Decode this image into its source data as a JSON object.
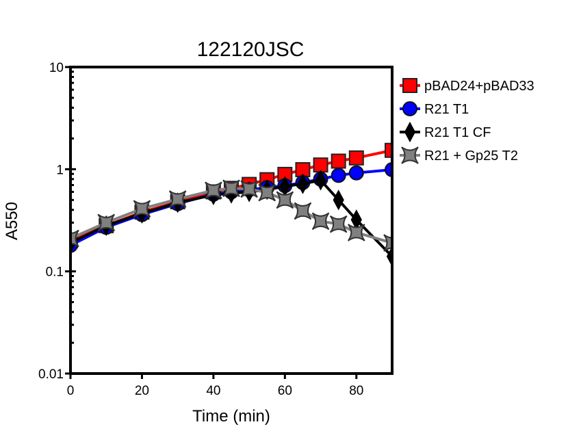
{
  "chart_data": {
    "type": "line",
    "title": "122120JSC",
    "xlabel": "Time (min)",
    "ylabel": "A550",
    "xlim": [
      0,
      90
    ],
    "ylim": [
      0.01,
      10
    ],
    "yscale": "log",
    "grid": false,
    "legend_position": "right",
    "x_ticks": [
      0,
      20,
      40,
      60,
      80
    ],
    "x_tick_labels": [
      "0",
      "20",
      "40",
      "60",
      "80"
    ],
    "y_ticks": [
      0.01,
      0.1,
      1,
      10
    ],
    "y_tick_labels": [
      "0.01",
      "0.1",
      "1",
      "10"
    ],
    "series": [
      {
        "name": "pBAD24+pBAD33",
        "color": "#ff0000",
        "marker": "square",
        "x": [
          0,
          10,
          20,
          30,
          40,
          45,
          50,
          55,
          60,
          65,
          70,
          75,
          80,
          90
        ],
        "y": [
          0.2,
          0.28,
          0.38,
          0.48,
          0.6,
          0.65,
          0.71,
          0.79,
          0.89,
          0.99,
          1.1,
          1.2,
          1.29,
          1.53
        ]
      },
      {
        "name": "R21 T1",
        "color": "#0000ff",
        "marker": "circle",
        "x": [
          0,
          10,
          20,
          30,
          40,
          45,
          50,
          55,
          60,
          65,
          70,
          75,
          80,
          90
        ],
        "y": [
          0.18,
          0.27,
          0.36,
          0.46,
          0.57,
          0.6,
          0.63,
          0.66,
          0.69,
          0.74,
          0.8,
          0.87,
          0.92,
          0.99
        ]
      },
      {
        "name": "R21 T1 CF",
        "color": "#000000",
        "marker": "diamond",
        "x": [
          0,
          10,
          20,
          30,
          40,
          45,
          50,
          55,
          60,
          65,
          70,
          75,
          80,
          90
        ],
        "y": [
          0.19,
          0.28,
          0.37,
          0.47,
          0.56,
          0.58,
          0.6,
          0.63,
          0.68,
          0.72,
          0.78,
          0.5,
          0.32,
          0.14
        ]
      },
      {
        "name": "R21 + Gp25 T2",
        "color": "#808080",
        "marker": "star4",
        "x": [
          0,
          10,
          20,
          30,
          40,
          45,
          50,
          55,
          60,
          65,
          70,
          75,
          80,
          90
        ],
        "y": [
          0.21,
          0.3,
          0.41,
          0.51,
          0.62,
          0.65,
          0.64,
          0.59,
          0.5,
          0.39,
          0.31,
          0.29,
          0.24,
          0.19
        ]
      }
    ]
  }
}
